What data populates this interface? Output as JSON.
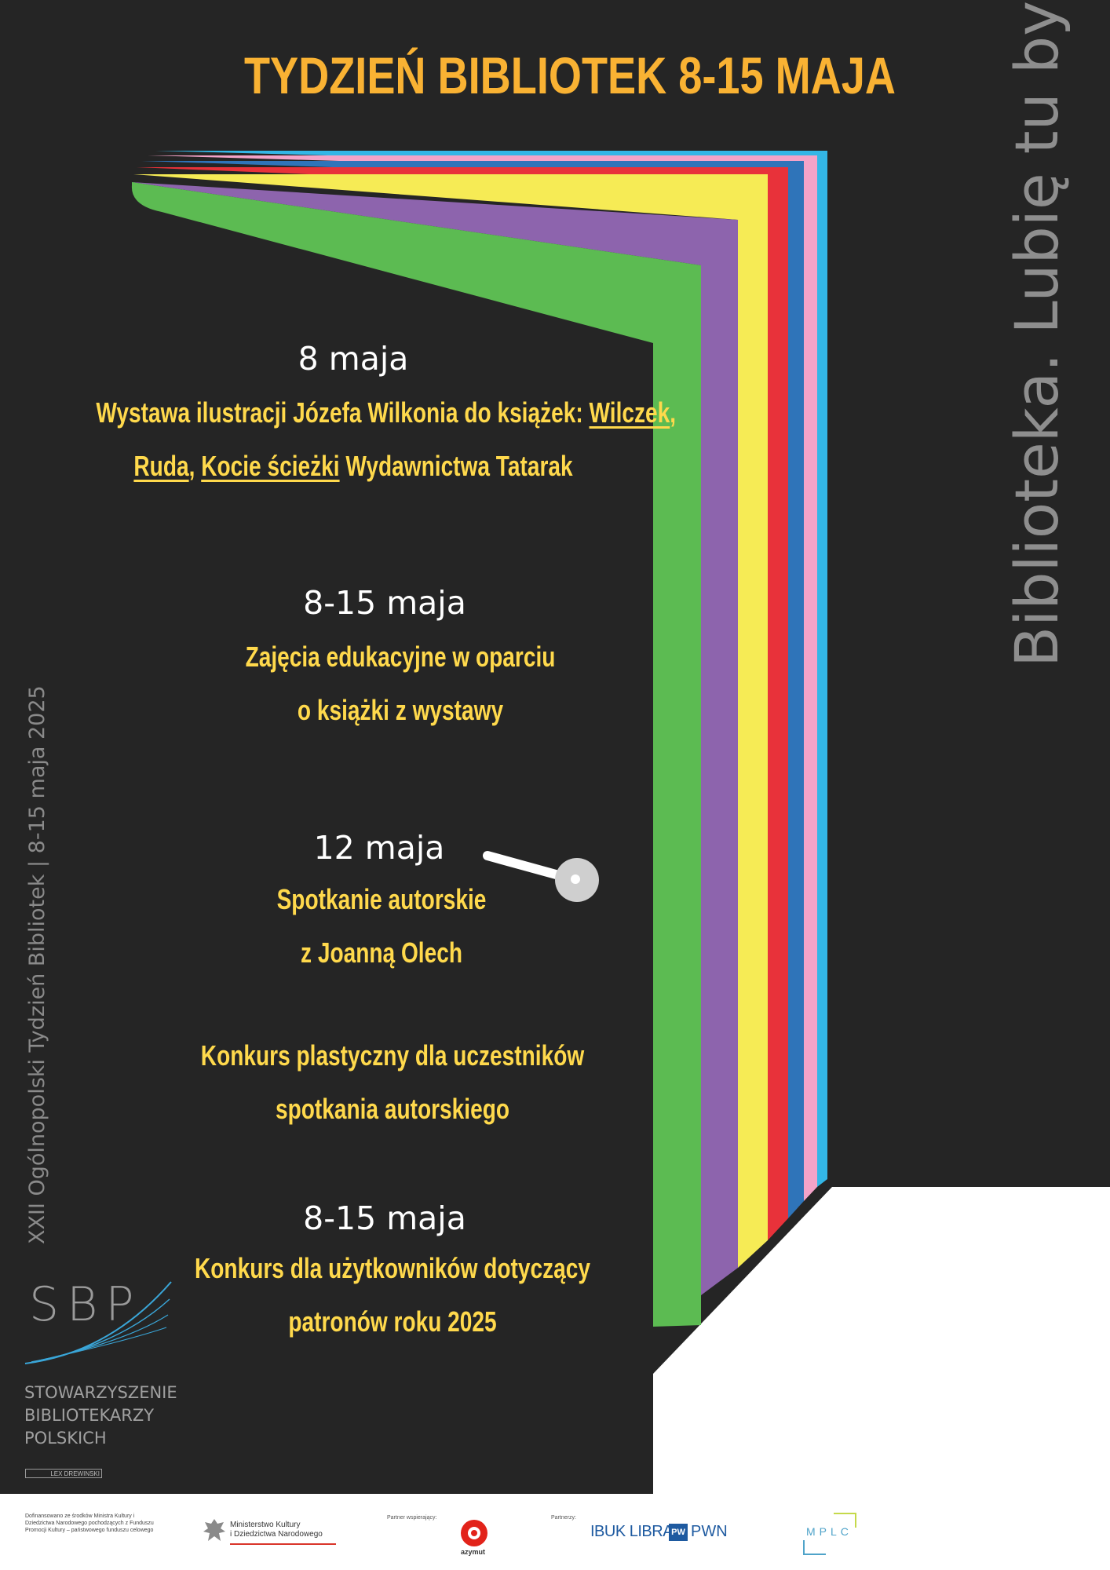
{
  "header": {
    "title": "TYDZIEŃ BIBLIOTEK 8-15 MAJA"
  },
  "events": [
    {
      "date": "8 maja",
      "line1_parts": [
        "Wystawa ilustracji Józefa Wilkonia do książek: ",
        "Wilczek",
        ","
      ],
      "line2_parts": [
        "Ruda",
        ", ",
        "Kocie ścieżki",
        " Wydawnictwa Tatarak"
      ]
    },
    {
      "date": "8-15 maja",
      "line1": "Zajęcia edukacyjne w oparciu",
      "line2": "o książki z wystawy"
    },
    {
      "date": "12 maja",
      "line1": "Spotkanie autorskie",
      "line2": "z Joanną Olech"
    },
    {
      "date": "",
      "line1": "Konkurs plastyczny dla uczestników",
      "line2": "spotkania autorskiego"
    },
    {
      "date": "8-15 maja",
      "line1": "Konkurs dla użytkowników dotyczący",
      "line2": "patronów roku 2025"
    }
  ],
  "slogan": "Biblioteka. Lubię tu być",
  "side_caption": "XXII Ogólnopolski Tydzień Bibliotek | 8-15 maja 2025",
  "sbp": {
    "letters": "SBP",
    "name_lines": [
      "STOWARZYSZENIE",
      "BIBLIOTEKARZY",
      "POLSKICH"
    ],
    "lex": "LEX DREWINSKI"
  },
  "footer": {
    "funding_text": "Dofinansowano ze środków Ministra Kultury i Dziedzictwa Narodowego pochodzących z Funduszu Promocji Kultury – państwowego funduszu celowego",
    "ministry_lines": [
      "Ministerstwo Kultury",
      "i Dziedzictwa Narodowego"
    ],
    "supporting_partner_label": "Partner wspierający:",
    "azymut": "azymut",
    "partners_label": "Partnerzy:",
    "ibuk": "IBUK LIBRA",
    "pwn_mark": "PW",
    "pwn": "PWN",
    "mplc": "MPLC"
  },
  "colors": {
    "background": "#252525",
    "title": "#f9b233",
    "description": "#ffd94c",
    "date": "#ffffff",
    "stripes": [
      "#5cbb52",
      "#8d64ad",
      "#f6eb55",
      "#e8323a",
      "#2f74b9",
      "#f4a3c8",
      "#33b6e6"
    ]
  }
}
